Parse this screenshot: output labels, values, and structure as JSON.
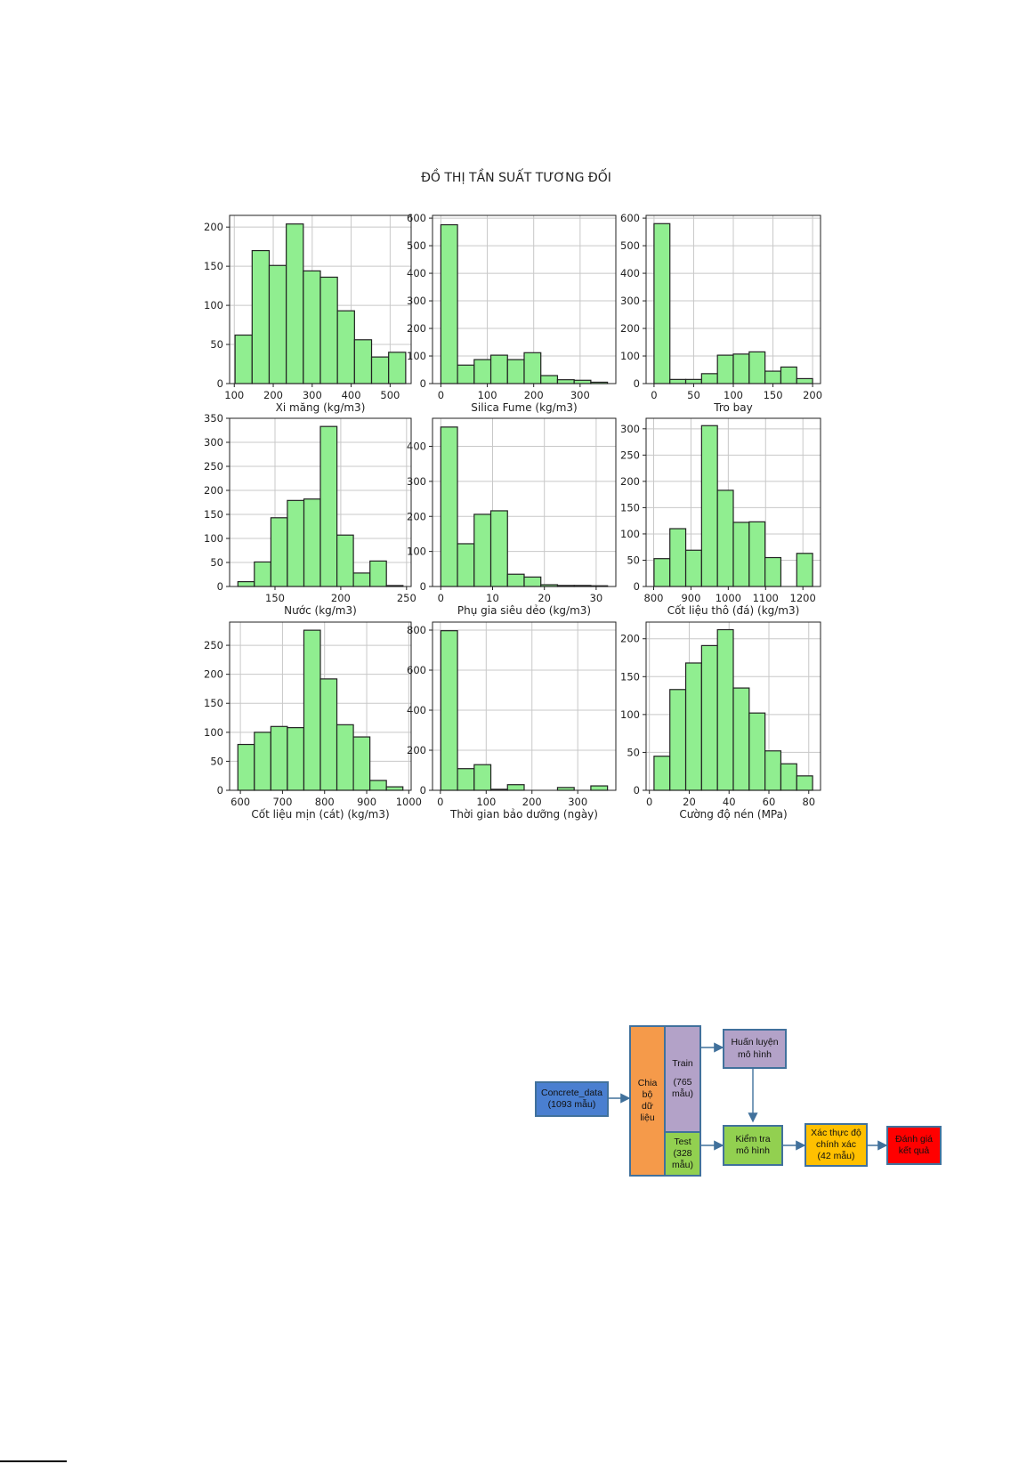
{
  "figure": {
    "title": "ĐỒ THỊ TẦN SUẤT TƯƠNG ĐỐI",
    "bar_color": "#90ee90",
    "edge_color": "#222222"
  },
  "chart_data": [
    {
      "type": "bar",
      "xlabel": "Xi măng (kg/m3)",
      "ylabel": "",
      "bin_edges": [
        102,
        145.8,
        189.6,
        233.4,
        277.2,
        321,
        364.8,
        408.6,
        452.4,
        496.2,
        540
      ],
      "values": [
        62,
        170,
        151,
        204,
        144,
        136,
        93,
        56,
        34,
        40
      ],
      "xlim": [
        88,
        554
      ],
      "ylim": [
        0,
        215
      ],
      "xticks": [
        100,
        200,
        300,
        400,
        500
      ],
      "yticks": [
        0,
        50,
        100,
        150,
        200
      ],
      "grid": true
    },
    {
      "type": "bar",
      "xlabel": "Silica Fume (kg/m3)",
      "ylabel": "",
      "bin_edges": [
        0,
        35.9,
        71.8,
        107.7,
        143.6,
        179.5,
        215.4,
        251.3,
        287.2,
        323.1,
        359
      ],
      "values": [
        576,
        67,
        87,
        103,
        87,
        112,
        29,
        14,
        12,
        5
      ],
      "xlim": [
        -18,
        377
      ],
      "ylim": [
        0,
        610
      ],
      "xticks": [
        0,
        100,
        200,
        300
      ],
      "yticks": [
        0,
        100,
        200,
        300,
        400,
        500,
        600
      ],
      "grid": true
    },
    {
      "type": "bar",
      "xlabel": "Tro bay",
      "ylabel": "",
      "bin_edges": [
        0,
        20,
        40,
        60,
        80,
        100,
        120,
        140,
        160,
        180,
        200
      ],
      "values": [
        580,
        15,
        15,
        36,
        103,
        107,
        115,
        45,
        60,
        18
      ],
      "xlim": [
        -10,
        210
      ],
      "ylim": [
        0,
        610
      ],
      "xticks": [
        0,
        50,
        100,
        150,
        200
      ],
      "yticks": [
        0,
        100,
        200,
        300,
        400,
        500,
        600
      ],
      "grid": true
    },
    {
      "type": "bar",
      "xlabel": "Nước (kg/m3)",
      "ylabel": "",
      "bin_edges": [
        121.8,
        134.3,
        146.9,
        159.4,
        172,
        184.5,
        197.1,
        209.6,
        222.2,
        234.7,
        247.3
      ],
      "values": [
        10,
        51,
        143,
        179,
        182,
        333,
        107,
        28,
        53,
        2
      ],
      "xlim": [
        115.5,
        253.5
      ],
      "ylim": [
        0,
        350
      ],
      "xticks": [
        150,
        200,
        250
      ],
      "yticks": [
        0,
        50,
        100,
        150,
        200,
        250,
        300,
        350
      ],
      "grid": true
    },
    {
      "type": "bar",
      "xlabel": "Phụ gia siêu dẻo (kg/m3)",
      "ylabel": "",
      "bin_edges": [
        0,
        3.22,
        6.44,
        9.66,
        12.88,
        16.1,
        19.32,
        22.54,
        25.76,
        28.98,
        32.2
      ],
      "values": [
        455,
        122,
        206,
        216,
        35,
        27,
        5,
        3,
        3,
        2
      ],
      "xlim": [
        -1.6,
        33.8
      ],
      "ylim": [
        0,
        480
      ],
      "xticks": [
        0,
        10,
        20,
        30
      ],
      "yticks": [
        0,
        100,
        200,
        300,
        400
      ],
      "grid": true
    },
    {
      "type": "bar",
      "xlabel": "Cốt liệu thô (đá) (kg/m3)",
      "ylabel": "",
      "bin_edges": [
        801,
        843.5,
        886,
        928.5,
        971,
        1013.5,
        1056,
        1098.5,
        1141,
        1183.5,
        1226
      ],
      "values": [
        53,
        110,
        69,
        306,
        183,
        122,
        123,
        55,
        0,
        63
      ],
      "xlim": [
        779.75,
        1247.25
      ],
      "ylim": [
        0,
        320
      ],
      "xticks": [
        800,
        900,
        1000,
        1100,
        1200
      ],
      "yticks": [
        0,
        50,
        100,
        150,
        200,
        250,
        300
      ],
      "grid": true
    },
    {
      "type": "bar",
      "xlabel": "Cốt liệu mịn (cát) (kg/m3)",
      "ylabel": "",
      "bin_edges": [
        594,
        633.2,
        672.4,
        711.6,
        750.8,
        790,
        829.2,
        868.4,
        907.6,
        946.8,
        986
      ],
      "values": [
        79,
        100,
        110,
        108,
        276,
        192,
        113,
        92,
        17,
        6
      ],
      "xlim": [
        574.4,
        1005.6
      ],
      "ylim": [
        0,
        290
      ],
      "xticks": [
        600,
        700,
        800,
        900,
        1000
      ],
      "yticks": [
        0,
        50,
        100,
        150,
        200,
        250
      ],
      "grid": true
    },
    {
      "type": "bar",
      "xlabel": "Thời gian bảo dưỡng (ngày)",
      "ylabel": "",
      "bin_edges": [
        1,
        37.4,
        73.8,
        110.2,
        146.6,
        183,
        219.4,
        255.8,
        292.2,
        328.6,
        365
      ],
      "values": [
        797,
        108,
        128,
        5,
        28,
        0,
        0,
        14,
        0,
        22
      ],
      "xlim": [
        -17.2,
        383.2
      ],
      "ylim": [
        0,
        840
      ],
      "xticks": [
        0,
        100,
        200,
        300
      ],
      "yticks": [
        0,
        200,
        400,
        600,
        800
      ],
      "grid": true
    },
    {
      "type": "bar",
      "xlabel": "Cường độ nén (MPa)",
      "ylabel": "",
      "bin_edges": [
        2.33,
        10.29,
        18.25,
        26.21,
        34.17,
        42.13,
        50.09,
        58.05,
        66.01,
        73.97,
        81.93
      ],
      "values": [
        45,
        133,
        168,
        191,
        212,
        135,
        102,
        52,
        35,
        19
      ],
      "xlim": [
        -1.65,
        85.91
      ],
      "ylim": [
        0,
        222
      ],
      "xticks": [
        0,
        20,
        40,
        60,
        80
      ],
      "yticks": [
        0,
        50,
        100,
        150,
        200
      ],
      "grid": true
    }
  ],
  "flowchart": {
    "concrete": {
      "line1": "Concrete_data",
      "line2": "(1093 mẫu)",
      "color": "#4a7fd0"
    },
    "split": {
      "line1": "Chia",
      "line2": "bộ",
      "line3": "dữ",
      "line4": "liệu",
      "color": "#f59a4a"
    },
    "train": {
      "line1": "Train",
      "line2": "(765",
      "line3": "mẫu)",
      "color": "#b3a2c8"
    },
    "test": {
      "line1": "Test",
      "line2": "(328",
      "line3": "mẫu)",
      "color": "#92d050"
    },
    "train_model": {
      "line1": "Huấn luyện",
      "line2": "mô hình",
      "color": "#b3a2c8"
    },
    "test_model": {
      "line1": "Kiểm tra",
      "line2": "mô hình",
      "color": "#92d050"
    },
    "validate": {
      "line1": "Xác thực độ",
      "line2": "chính xác",
      "line3": "(42  mẫu)",
      "color": "#ffc000"
    },
    "evaluate": {
      "line1": "Đánh giá",
      "line2": "kết quả",
      "color": "#ff0000"
    },
    "arrow_color": "#41719c"
  }
}
